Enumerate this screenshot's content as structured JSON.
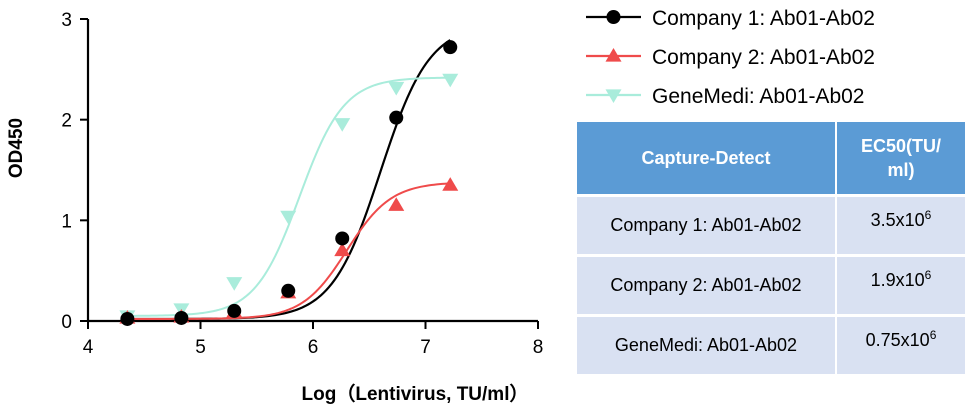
{
  "chart_data": {
    "type": "line",
    "xlabel": "Log（Lentivirus, TU/ml）",
    "ylabel": "OD450",
    "xlim": [
      4,
      8
    ],
    "ylim": [
      0,
      3
    ],
    "x_ticks": [
      4,
      5,
      6,
      7,
      8
    ],
    "y_ticks": [
      0,
      1,
      2,
      3
    ],
    "grid": false,
    "legend_position": "top-right",
    "series": [
      {
        "name": "Company 1: Ab01-Ab02",
        "color": "#000000",
        "marker": "circle",
        "x": [
          4.35,
          4.83,
          5.3,
          5.78,
          6.26,
          6.74,
          7.22
        ],
        "y": [
          0.02,
          0.03,
          0.1,
          0.3,
          0.82,
          2.02,
          2.72
        ]
      },
      {
        "name": "Company 2: Ab01-Ab02",
        "color": "#ef4b4b",
        "marker": "triangle-up",
        "x": [
          4.35,
          4.83,
          5.3,
          5.78,
          6.26,
          6.74,
          7.22
        ],
        "y": [
          0.03,
          0.04,
          0.09,
          0.28,
          0.7,
          1.15,
          1.35
        ]
      },
      {
        "name": "GeneMedi: Ab01-Ab02",
        "color": "#a9ecdb",
        "marker": "triangle-down",
        "x": [
          4.35,
          4.83,
          5.3,
          5.78,
          6.26,
          6.74,
          7.22
        ],
        "y": [
          0.05,
          0.12,
          0.38,
          1.04,
          1.96,
          2.32,
          2.4
        ]
      }
    ],
    "curves": [
      {
        "series": "Company 1: Ab01-Ab02",
        "bottom": 0.02,
        "top": 2.95,
        "ec50_log": 6.6,
        "slope": 2.0
      },
      {
        "series": "Company 2: Ab01-Ab02",
        "bottom": 0.02,
        "top": 1.38,
        "ec50_log": 6.3,
        "slope": 2.2
      },
      {
        "series": "GeneMedi: Ab01-Ab02",
        "bottom": 0.05,
        "top": 2.42,
        "ec50_log": 5.88,
        "slope": 2.2
      }
    ]
  },
  "table": {
    "header": [
      "Capture-Detect",
      "EC50(TU/\nml)"
    ],
    "header_line1": "EC50(TU/",
    "header_line2": "ml)",
    "rows": [
      {
        "name": "Company 1: Ab01-Ab02",
        "ec50_mantissa": "3.5x10",
        "ec50_exp": "6"
      },
      {
        "name": "Company 2: Ab01-Ab02",
        "ec50_mantissa": "1.9x10",
        "ec50_exp": "6"
      },
      {
        "name": "GeneMedi: Ab01-Ab02",
        "ec50_mantissa": "0.75x10",
        "ec50_exp": "6"
      }
    ]
  }
}
